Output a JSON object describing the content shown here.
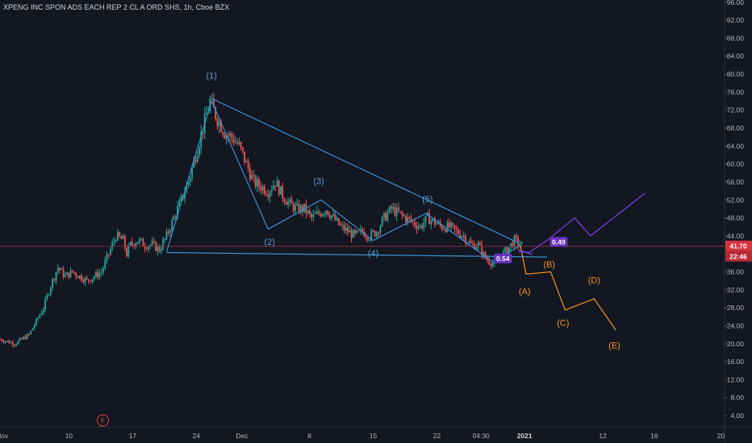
{
  "title": "XPENG INC SPON ADS EACH REP 2 CL A ORD SHS, 1h, Cboe BZX",
  "colors": {
    "background": "#131722",
    "up": "#26a69a",
    "down": "#ef5350",
    "blue_lines": "#3a8fd0",
    "orange_lines": "#f7931e",
    "purple_lines": "#7b3fe4",
    "price_line": "#8a2a3a",
    "price_tag": "#d8343d",
    "time_tag": "#b52a36",
    "label_tag": "#6a2fc2"
  },
  "price_tag": "41.70",
  "time_tag": "22:46",
  "event_marker": "E",
  "chart_data": {
    "type": "candlestick",
    "y_axis_ticks": [
      "96.00",
      "92.00",
      "88.00",
      "84.00",
      "80.00",
      "76.00",
      "72.00",
      "68.00",
      "64.00",
      "60.00",
      "56.00",
      "52.00",
      "48.00",
      "44.00",
      "40.00",
      "36.00",
      "32.00",
      "28.00",
      "24.00",
      "20.00",
      "16.00",
      "12.00",
      "8.00",
      "4.00"
    ],
    "ylim": [
      1.5,
      96.5
    ],
    "x_axis_ticks": [
      {
        "label": "Nov",
        "pos": 0.3
      },
      {
        "label": "10",
        "pos": 9.5
      },
      {
        "label": "17",
        "pos": 18.3
      },
      {
        "label": "24",
        "pos": 27.1
      },
      {
        "label": "Dec",
        "pos": 33.4
      },
      {
        "label": "8",
        "pos": 42.7
      },
      {
        "label": "15",
        "pos": 51.5
      },
      {
        "label": "22",
        "pos": 60.3
      },
      {
        "label": "04:30",
        "pos": 66.4
      },
      {
        "label": "2021",
        "pos": 72.4,
        "bold": true
      },
      {
        "label": "12",
        "pos": 83.2
      },
      {
        "label": "16",
        "pos": 90.3
      },
      {
        "label": "20",
        "pos": 99.5
      }
    ],
    "xlim": [
      0,
      100
    ],
    "last_price": 41.7,
    "price_path": [
      [
        0,
        21
      ],
      [
        2,
        20
      ],
      [
        4,
        22
      ],
      [
        5,
        25
      ],
      [
        6,
        28
      ],
      [
        7,
        33
      ],
      [
        8,
        37
      ],
      [
        9,
        35
      ],
      [
        10,
        36
      ],
      [
        11,
        35
      ],
      [
        12,
        34
      ],
      [
        13,
        35
      ],
      [
        14,
        36
      ],
      [
        15,
        40
      ],
      [
        16,
        44
      ],
      [
        17,
        43
      ],
      [
        17.5,
        40
      ],
      [
        18,
        42
      ],
      [
        19,
        43
      ],
      [
        20,
        42
      ],
      [
        21,
        42
      ],
      [
        22,
        41
      ],
      [
        23,
        44
      ],
      [
        24,
        48
      ],
      [
        25,
        52
      ],
      [
        26,
        56
      ],
      [
        27,
        62
      ],
      [
        28,
        68
      ],
      [
        29,
        74
      ],
      [
        30,
        70
      ],
      [
        31,
        67
      ],
      [
        32,
        66
      ],
      [
        33,
        64
      ],
      [
        34,
        60
      ],
      [
        35,
        56
      ],
      [
        36,
        55
      ],
      [
        37,
        54
      ],
      [
        38,
        56
      ],
      [
        39,
        53
      ],
      [
        40,
        51
      ],
      [
        41,
        50
      ],
      [
        42,
        50
      ],
      [
        43,
        48
      ],
      [
        44,
        49
      ],
      [
        45,
        50
      ],
      [
        46,
        48
      ],
      [
        47,
        46
      ],
      [
        48,
        45
      ],
      [
        49,
        44
      ],
      [
        50,
        45
      ],
      [
        51,
        44
      ],
      [
        52,
        45
      ],
      [
        53,
        48
      ],
      [
        54,
        50
      ],
      [
        55,
        49
      ],
      [
        56,
        48
      ],
      [
        57,
        47
      ],
      [
        58,
        46
      ],
      [
        59,
        48
      ],
      [
        60,
        47
      ],
      [
        61,
        46
      ],
      [
        62,
        46
      ],
      [
        63,
        45
      ],
      [
        64,
        44
      ],
      [
        65,
        42
      ],
      [
        66,
        42
      ],
      [
        67,
        39
      ],
      [
        68,
        38
      ],
      [
        69,
        39
      ],
      [
        70,
        41
      ],
      [
        71,
        43
      ],
      [
        72,
        42
      ]
    ],
    "triangle_lines": [
      {
        "from": [
          29.3,
          74.5
        ],
        "to": [
          71.5,
          42.5
        ]
      },
      {
        "from": [
          23,
          40.3
        ],
        "to": [
          75.5,
          39.3
        ]
      }
    ],
    "elliott_impulse": [
      [
        23,
        40.5
      ],
      [
        29.2,
        74
      ],
      [
        37,
        45.5
      ],
      [
        44.3,
        52
      ],
      [
        51.5,
        43
      ],
      [
        58.8,
        49
      ],
      [
        68.2,
        38
      ],
      [
        71.8,
        42
      ]
    ],
    "projection_abcde": [
      [
        71.8,
        42
      ],
      [
        72.6,
        35.5
      ],
      [
        76,
        36
      ],
      [
        78,
        27.5
      ],
      [
        82,
        30
      ],
      [
        85,
        23
      ]
    ],
    "projection_purple_upper": [
      [
        71.5,
        40.5
      ],
      [
        73,
        40.3
      ],
      [
        75.5,
        43
      ],
      [
        79.3,
        48
      ],
      [
        81.5,
        44
      ],
      [
        89,
        53.5
      ]
    ],
    "projection_purple_lower": [
      [
        71.5,
        41
      ],
      [
        73.5,
        39.8
      ]
    ],
    "wave_labels": [
      {
        "text": "(1)",
        "x": 29.2,
        "y": 79,
        "color": "blue"
      },
      {
        "text": "(2)",
        "x": 37.2,
        "y": 42,
        "color": "blue"
      },
      {
        "text": "(3)",
        "x": 44,
        "y": 55.5,
        "color": "blue"
      },
      {
        "text": "(4)",
        "x": 51.5,
        "y": 39.5,
        "color": "blue"
      },
      {
        "text": "(5)",
        "x": 59,
        "y": 51.5,
        "color": "blue"
      },
      {
        "text": "(B)",
        "x": 75.8,
        "y": 37,
        "color": "orange"
      },
      {
        "text": "(A)",
        "x": 72.4,
        "y": 31,
        "color": "orange"
      },
      {
        "text": "(C)",
        "x": 77.7,
        "y": 24,
        "color": "orange"
      },
      {
        "text": "(D)",
        "x": 82,
        "y": 33.5,
        "color": "orange"
      },
      {
        "text": "(E)",
        "x": 84.8,
        "y": 19,
        "color": "orange"
      }
    ],
    "ratio_tags": [
      {
        "text": "0.54",
        "x": 69.3,
        "y": 38.8
      },
      {
        "text": "0.49",
        "x": 77,
        "y": 42.5
      }
    ]
  }
}
